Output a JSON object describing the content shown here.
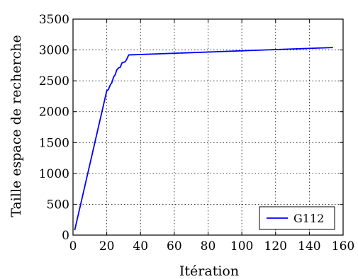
{
  "chart_data": {
    "type": "line",
    "title": "",
    "xlabel": "Itération",
    "ylabel": "Taille espace de recherche",
    "xlim": [
      0,
      160
    ],
    "ylim": [
      0,
      3500
    ],
    "xticks": [
      0,
      20,
      40,
      60,
      80,
      100,
      120,
      140,
      160
    ],
    "yticks": [
      0,
      500,
      1000,
      1500,
      2000,
      2500,
      3000,
      3500
    ],
    "grid": true,
    "legend_position": "bottom-right",
    "series": [
      {
        "name": "G112",
        "color": "#0000ff",
        "x": [
          1,
          20,
          21,
          22,
          23,
          24,
          25,
          26,
          27,
          28,
          29,
          30,
          31,
          32,
          33,
          154
        ],
        "y": [
          80,
          2340,
          2360,
          2430,
          2470,
          2560,
          2600,
          2680,
          2710,
          2720,
          2790,
          2800,
          2810,
          2860,
          2920,
          3040
        ]
      }
    ]
  }
}
